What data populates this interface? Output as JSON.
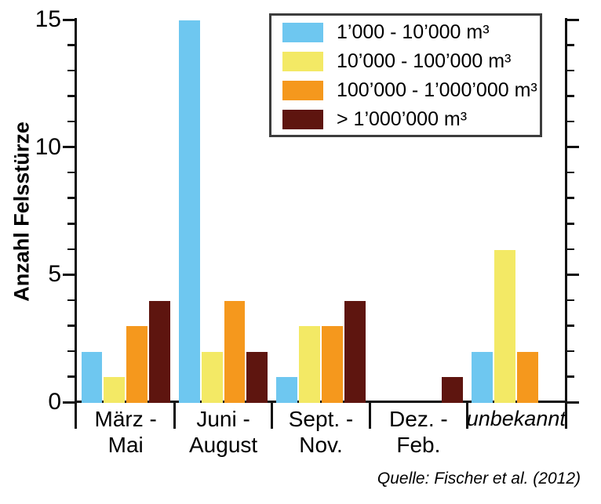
{
  "chart_data": {
    "type": "bar",
    "title": "",
    "ylabel": "Anzahl Felsstürze",
    "ylim": [
      0,
      15
    ],
    "ytick_major": [
      0,
      5,
      10,
      15
    ],
    "ytick_minor_step": 1,
    "grid": false,
    "legend_position": "top-right",
    "categories": [
      {
        "lines": [
          "März -",
          "Mai"
        ],
        "italic": false
      },
      {
        "lines": [
          "Juni -",
          "August"
        ],
        "italic": false
      },
      {
        "lines": [
          "Sept. -",
          "Nov."
        ],
        "italic": false
      },
      {
        "lines": [
          "Dez. -",
          "Feb."
        ],
        "italic": false
      },
      {
        "lines": [
          "unbekannt"
        ],
        "italic": true
      }
    ],
    "series": [
      {
        "name": "1’000 - 10’000 m³",
        "color": "#6EC7F0",
        "values": [
          2,
          15,
          1,
          0,
          2
        ]
      },
      {
        "name": "10’000 - 100’000 m³",
        "color": "#F3E965",
        "values": [
          1,
          2,
          3,
          0,
          6
        ]
      },
      {
        "name": "100’000 - 1’000’000 m³",
        "color": "#F5981D",
        "values": [
          3,
          4,
          3,
          0,
          2
        ]
      },
      {
        "name": "> 1’000’000 m³",
        "color": "#5E150F",
        "values": [
          4,
          2,
          4,
          1,
          0
        ]
      }
    ],
    "source": "Quelle: Fischer et al. (2012)"
  }
}
